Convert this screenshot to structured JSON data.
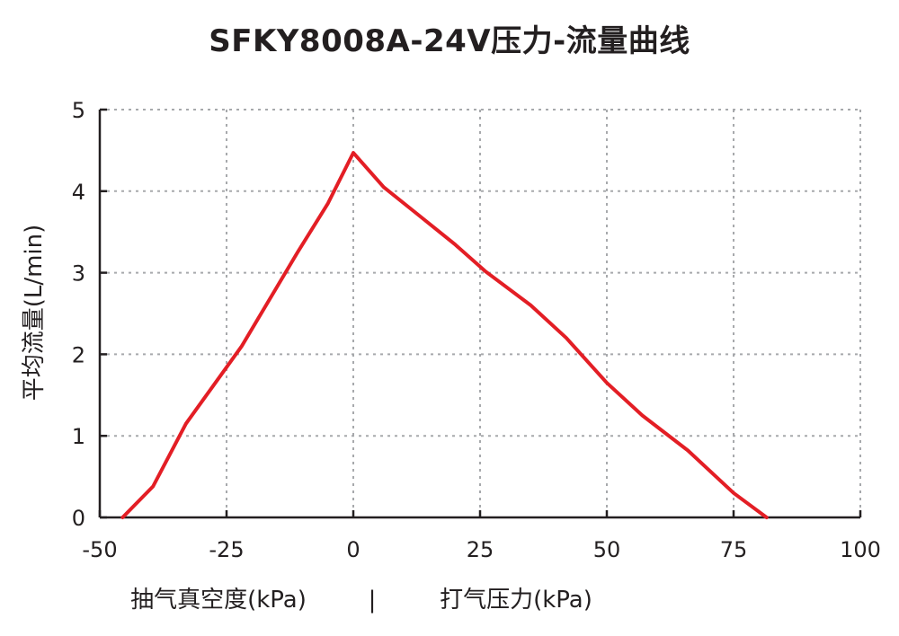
{
  "chart_data": {
    "type": "line",
    "title": "SFKY8008A-24V压力-流量曲线",
    "ylabel": "平均流量(L/min)",
    "xlabel_left": "抽气真空度(kPa)",
    "xlabel_sep": "|",
    "xlabel_right": "打气压力(kPa)",
    "xlim": [
      -50,
      100
    ],
    "ylim": [
      0,
      5
    ],
    "x_ticks": [
      -50,
      -25,
      0,
      25,
      50,
      75,
      100
    ],
    "x_tick_labels": [
      "-50",
      "-25",
      "0",
      "25",
      "50",
      "75",
      "100"
    ],
    "y_ticks": [
      0,
      1,
      2,
      3,
      4,
      5
    ],
    "y_tick_labels": [
      "0",
      "1",
      "2",
      "3",
      "4",
      "5"
    ],
    "grid": true,
    "line_color": "#e31e25",
    "series": [
      {
        "x": [
          -45.5,
          -39.5,
          -33,
          -22,
          -11,
          -5,
          0,
          6,
          13,
          20,
          26,
          35,
          42,
          50,
          57,
          66,
          75,
          81.5
        ],
        "y": [
          0,
          0.38,
          1.15,
          2.1,
          3.25,
          3.85,
          4.47,
          4.05,
          3.7,
          3.35,
          3.02,
          2.6,
          2.2,
          1.65,
          1.25,
          0.82,
          0.3,
          0
        ]
      }
    ]
  }
}
